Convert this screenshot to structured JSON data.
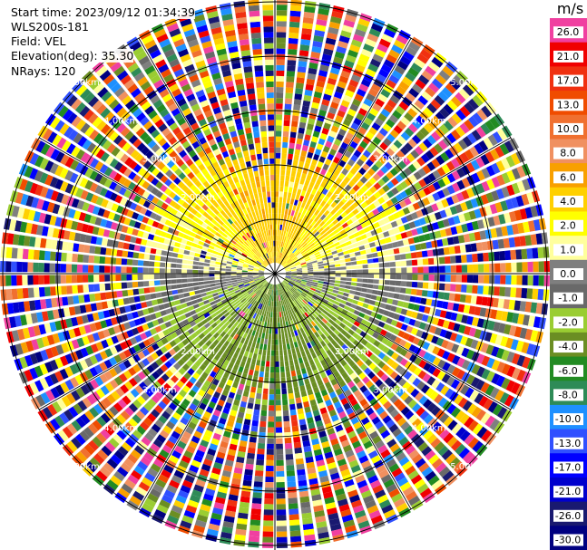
{
  "header": {
    "start_time": "Start time: 2023/09/12 01:34:39",
    "instrument": "WLS200s-181",
    "field": "Field: VEL",
    "elevation": "Elevation(deg): 35.30",
    "nrays": "NRays: 120"
  },
  "chart_data": {
    "type": "heatmap",
    "title": "",
    "field": "VEL",
    "units": "m/s",
    "n_rays": 120,
    "range_rings_km": [
      1.0,
      2.0,
      3.0,
      4.0,
      5.0
    ],
    "ring_label_text": "km",
    "ring_label_format": "0.00",
    "grid": true,
    "colorbar": {
      "unit_label": "m/s",
      "tick_labels": [
        "26.0",
        "21.0",
        "17.0",
        "13.0",
        "10.0",
        "8.0",
        "6.0",
        "4.0",
        "2.0",
        "1.0",
        "0.0",
        "-1.0",
        "-2.0",
        "-4.0",
        "-6.0",
        "-8.0",
        "-10.0",
        "-13.0",
        "-17.0",
        "-21.0",
        "-26.0",
        "-30.0"
      ],
      "bins": [
        {
          "label": "26.0",
          "color": "#f040a0"
        },
        {
          "label": "21.0",
          "color": "#f00000"
        },
        {
          "label": "17.0",
          "color": "#f03010"
        },
        {
          "label": "13.0",
          "color": "#f04c00"
        },
        {
          "label": "10.0",
          "color": "#f07030"
        },
        {
          "label": "8.0",
          "color": "#f09060"
        },
        {
          "label": "6.0",
          "color": "#f8a000"
        },
        {
          "label": "4.0",
          "color": "#ffd000"
        },
        {
          "label": "2.0",
          "color": "#ffff00"
        },
        {
          "label": "1.0",
          "color": "#ffff9c"
        },
        {
          "label": "0.0",
          "color": "#7f7f7f"
        },
        {
          "label": "-1.0",
          "color": "#696969"
        },
        {
          "label": "-2.0",
          "color": "#9acd32"
        },
        {
          "label": "-4.0",
          "color": "#6b8e23"
        },
        {
          "label": "-6.0",
          "color": "#228b22"
        },
        {
          "label": "-8.0",
          "color": "#2e8b57"
        },
        {
          "label": "-10.0",
          "color": "#1e90ff"
        },
        {
          "label": "-13.0",
          "color": "#3050ff"
        },
        {
          "label": "-17.0",
          "color": "#0000ff"
        },
        {
          "label": "-21.0",
          "color": "#0000cd"
        },
        {
          "label": "-26.0",
          "color": "#191970"
        },
        {
          "label": "-30.0",
          "color": "#000080"
        }
      ]
    }
  }
}
